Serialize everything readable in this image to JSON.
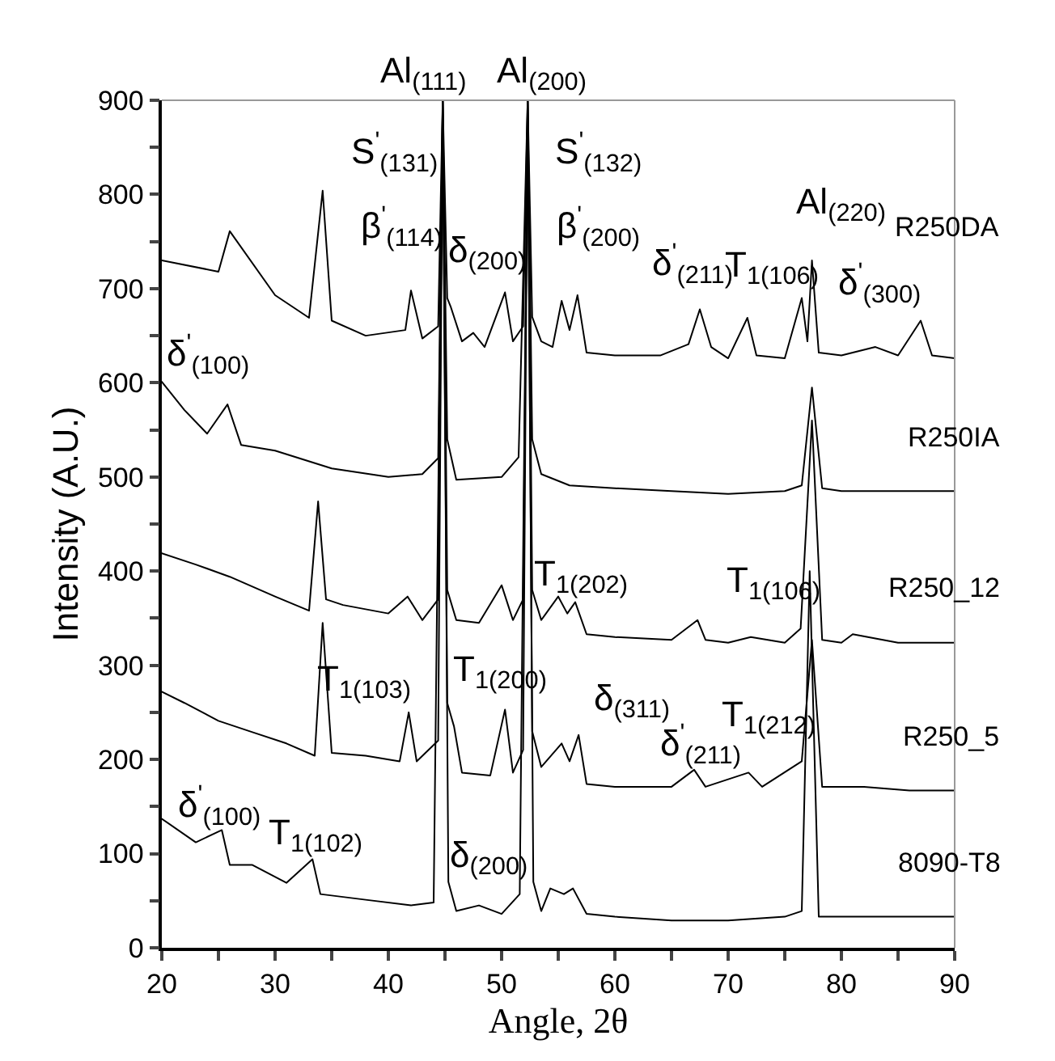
{
  "chart_data": {
    "type": "line",
    "xlabel": "Angle, 2θ",
    "ylabel": "Intensity (A.U.)",
    "xlim": [
      20,
      90
    ],
    "ylim": [
      0,
      900
    ],
    "xticks": [
      20,
      {
        "value": 25,
        "label": null
      },
      30,
      {
        "value": 35,
        "label": null
      },
      40,
      {
        "value": 45,
        "label": null
      },
      50,
      {
        "value": 55,
        "label": null
      },
      60,
      {
        "value": 65,
        "label": null
      },
      70,
      {
        "value": 75,
        "label": null
      },
      80,
      {
        "value": 85,
        "label": null
      },
      90
    ],
    "yticks": [
      0,
      {
        "value": 50,
        "label": null
      },
      100,
      {
        "value": 150,
        "label": null
      },
      200,
      {
        "value": 250,
        "label": null
      },
      300,
      {
        "value": 350,
        "label": null
      },
      400,
      {
        "value": 450,
        "label": null
      },
      500,
      {
        "value": 550,
        "label": null
      },
      600,
      {
        "value": 650,
        "label": null
      },
      700,
      {
        "value": 750,
        "label": null
      },
      800,
      {
        "value": 850,
        "label": null
      },
      900
    ],
    "legend": false,
    "marker": "none",
    "line_style": "solid",
    "series": [
      {
        "name": "R250DA",
        "color": "#000000",
        "x": [
          20,
          25,
          26,
          30,
          33,
          34.2,
          35,
          38,
          41.5,
          42,
          43,
          44.4,
          44.8,
          45.2,
          45.5,
          46.5,
          47.5,
          48.5,
          50.3,
          51,
          51.9,
          52.3,
          52.7,
          53.5,
          54.5,
          55.3,
          56,
          56.7,
          57.5,
          60,
          64,
          66.5,
          67.5,
          68.5,
          70,
          71.7,
          72.5,
          75,
          76.5,
          77,
          77.4,
          78,
          80,
          83,
          85,
          87,
          88,
          90
        ],
        "values": [
          730,
          718,
          761,
          693,
          669,
          804,
          666,
          650,
          656,
          698,
          647,
          660,
          900,
          690,
          681,
          644,
          653,
          638,
          696,
          644,
          660,
          900,
          670,
          644,
          638,
          687,
          656,
          693,
          632,
          629,
          629,
          641,
          678,
          638,
          626,
          669,
          629,
          626,
          690,
          644,
          730,
          632,
          629,
          638,
          629,
          666,
          629,
          626
        ]
      },
      {
        "name": "R250IA",
        "color": "#000000",
        "x": [
          20,
          22,
          24,
          25.8,
          27,
          30,
          35,
          40,
          43,
          44.4,
          44.8,
          45.2,
          46,
          50,
          51.5,
          52.3,
          52.7,
          53.5,
          56,
          60,
          65,
          70,
          75,
          76.5,
          77.4,
          78.3,
          80,
          85,
          90
        ],
        "values": [
          601,
          571,
          546,
          577,
          534,
          528,
          509,
          500,
          503,
          520,
          900,
          540,
          497,
          500,
          521,
          900,
          540,
          503,
          491,
          488,
          485,
          482,
          485,
          491,
          595,
          488,
          485,
          485,
          485
        ]
      },
      {
        "name": "R250_12",
        "color": "#000000",
        "x": [
          20,
          23,
          26,
          30,
          33,
          33.8,
          34.5,
          36,
          40,
          41.7,
          43,
          44.4,
          44.8,
          45.2,
          46,
          48,
          50,
          51,
          51.9,
          52.3,
          52.7,
          53.5,
          55,
          55.8,
          56.5,
          57.5,
          60,
          65,
          67.3,
          68,
          70,
          72,
          75,
          76.4,
          77.4,
          78.3,
          80,
          81,
          85,
          90
        ],
        "values": [
          419,
          407,
          394,
          373,
          358,
          474,
          370,
          364,
          355,
          373,
          348,
          370,
          900,
          380,
          348,
          345,
          385,
          348,
          370,
          900,
          380,
          348,
          373,
          355,
          367,
          333,
          330,
          327,
          348,
          327,
          324,
          330,
          324,
          339,
          560,
          327,
          324,
          333,
          324,
          324
        ]
      },
      {
        "name": "R250_5",
        "color": "#000000",
        "x": [
          20,
          22,
          25,
          28,
          31,
          33.5,
          34.2,
          35,
          38,
          41,
          41.8,
          42.5,
          44.4,
          44.8,
          45.2,
          45.8,
          46.5,
          49,
          50.3,
          51,
          51.9,
          52.3,
          52.7,
          53.5,
          55.3,
          56,
          56.8,
          57.5,
          60,
          65,
          67,
          68,
          71.8,
          73,
          76.5,
          77.4,
          78.3,
          82,
          86,
          90
        ],
        "values": [
          272,
          260,
          241,
          229,
          217,
          204,
          345,
          207,
          204,
          198,
          250,
          198,
          220,
          900,
          260,
          235,
          186,
          183,
          253,
          186,
          210,
          900,
          230,
          192,
          217,
          198,
          226,
          174,
          171,
          171,
          189,
          171,
          186,
          171,
          198,
          327,
          171,
          171,
          167,
          167
        ]
      },
      {
        "name": "8090-T8",
        "color": "#000000",
        "x": [
          20,
          23,
          25.3,
          26,
          28,
          31,
          33.3,
          34,
          38,
          42,
          44,
          44.8,
          45.3,
          46,
          48,
          50,
          51.6,
          52.3,
          52.8,
          53.5,
          54.3,
          55.5,
          56.3,
          57.5,
          60,
          65,
          70,
          75,
          76.5,
          77.2,
          78,
          80,
          85,
          90
        ],
        "values": [
          137,
          112,
          125,
          88,
          88,
          69,
          94,
          57,
          51,
          45,
          48,
          900,
          70,
          39,
          45,
          36,
          57,
          900,
          70,
          39,
          63,
          57,
          63,
          36,
          33,
          29,
          29,
          33,
          39,
          400,
          33,
          33,
          33,
          33
        ]
      }
    ],
    "annotations": [
      "Al$_{(111)}$",
      "Al$_{(200)}$",
      "S$^{'}$$_{(131)}$",
      "S$^{'}$$_{(132)}$",
      "Al$_{(220)}$",
      "β$^{'}$$_{(114)}$",
      "δ$_{(200)}$",
      "β$^{'}$$_{(200)}$",
      "δ$^{'}$$_{(211)}$",
      "T$_{1(106)}$",
      "δ$^{'}$$_{(300)}$",
      "δ$^{'}$$_{(100)}$",
      "T$_{1(202)}$",
      "T$_{1(106)}$",
      "T$_{1(103)}$",
      "T$_{1(200)}$",
      "δ$_{(311)}$",
      "δ$^{'}$$_{(211)}$",
      "T$_{1(212)}$",
      "δ$^{'}$$_{(100)}$",
      "T$_{1(102)}$",
      "δ$_{(200)}$"
    ]
  }
}
